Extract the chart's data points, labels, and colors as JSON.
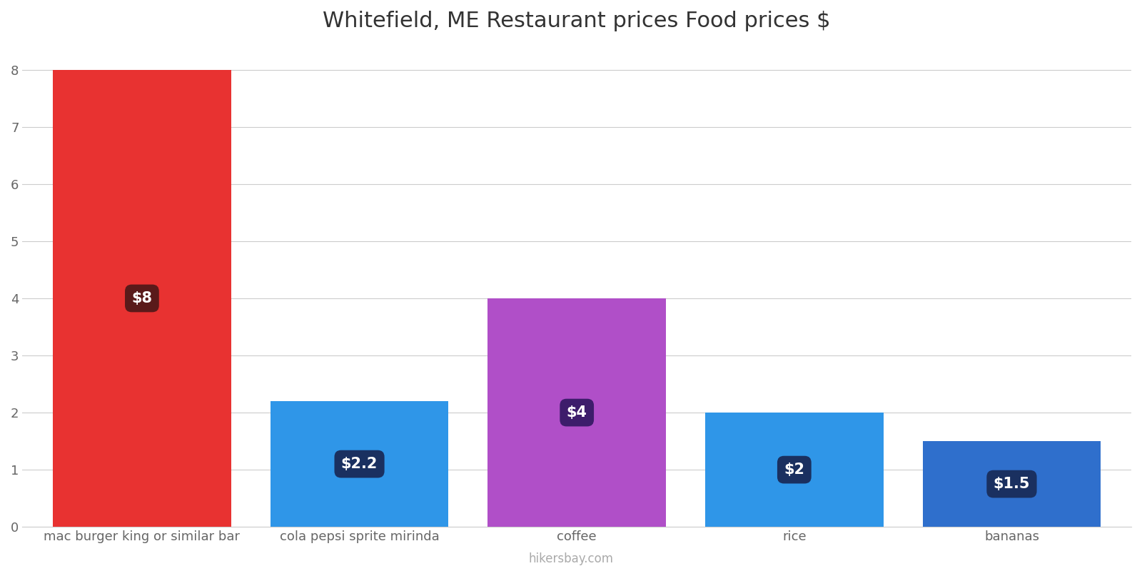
{
  "title": "Whitefield, ME Restaurant prices Food prices $",
  "categories": [
    "mac burger king or similar bar",
    "cola pepsi sprite mirinda",
    "coffee",
    "rice",
    "bananas"
  ],
  "values": [
    8,
    2.2,
    4,
    2,
    1.5
  ],
  "bar_colors": [
    "#e83231",
    "#2f96e8",
    "#b04fc8",
    "#2f96e8",
    "#2f6fcc"
  ],
  "label_texts": [
    "$8",
    "$2.2",
    "$4",
    "$2",
    "$1.5"
  ],
  "label_bg_colors": [
    "#5a1a1a",
    "#1a3060",
    "#3d1d6b",
    "#1a3060",
    "#1a3060"
  ],
  "ylim": [
    0,
    8.4
  ],
  "yticks": [
    0,
    1,
    2,
    3,
    4,
    5,
    6,
    7,
    8
  ],
  "background_color": "#ffffff",
  "title_fontsize": 22,
  "watermark": "hikersbay.com",
  "figsize": [
    16,
    8
  ],
  "bar_width": 0.82
}
